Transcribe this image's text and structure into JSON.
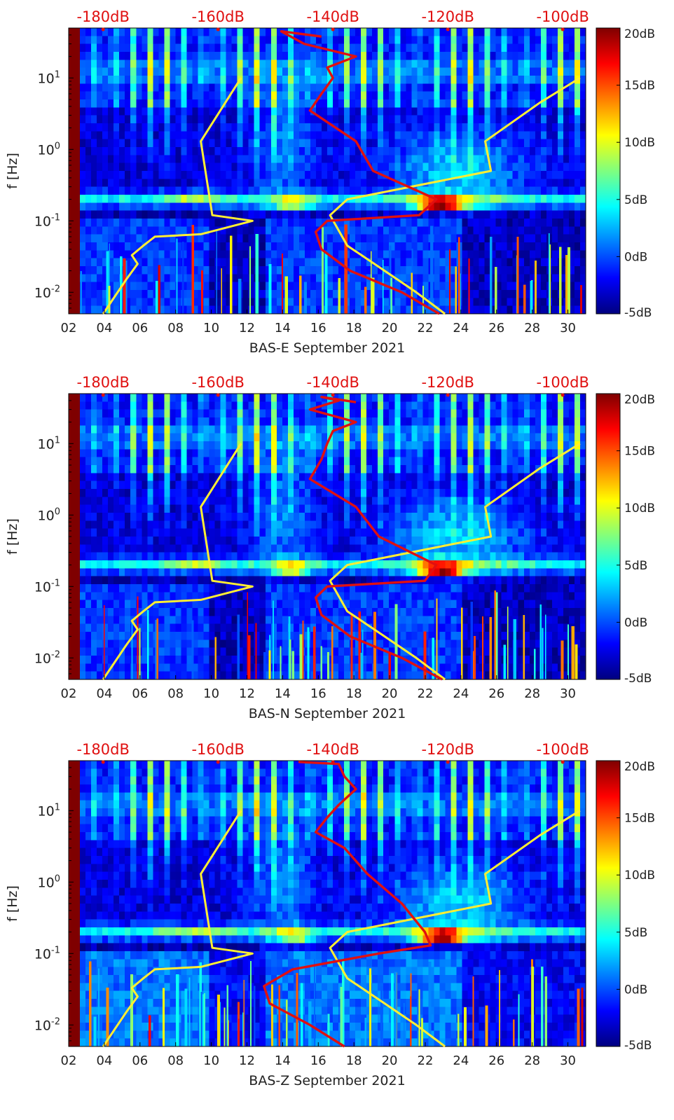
{
  "colors": {
    "noise_model_line": "#ffee33",
    "psd_line": "#e01010",
    "top_axis_text": "#e01010",
    "colormap": [
      "#00007f",
      "#0000ff",
      "#007fff",
      "#00ffff",
      "#7fff7f",
      "#ffff00",
      "#ff7f00",
      "#ff0000",
      "#7f0000"
    ]
  },
  "chart_data": [
    {
      "type": "heatmap",
      "title": "",
      "xlabel": "BAS-E September 2021",
      "ylabel": "f [Hz]",
      "x_ticks": [
        "02",
        "04",
        "06",
        "08",
        "10",
        "12",
        "14",
        "16",
        "18",
        "20",
        "22",
        "24",
        "26",
        "28",
        "30"
      ],
      "y_ticks": [
        "10-2",
        "10-1",
        "100",
        "101"
      ],
      "top_axis_ticks": [
        "-180dB",
        "-160dB",
        "-140dB",
        "-120dB",
        "-100dB"
      ],
      "colorbar_ticks": [
        "20dB",
        "15dB",
        "10dB",
        "5dB",
        "0dB",
        "-5dB"
      ],
      "xlim": [
        2,
        31
      ],
      "ylim": [
        0.005,
        50
      ],
      "y_scale": "log",
      "clim_db": [
        -5,
        20
      ],
      "top_axis_range_db": [
        -186,
        -96
      ],
      "series": [
        {
          "x_db": [
            -180,
            -176,
            -174,
            -175,
            -173,
            -171,
            -163,
            -154,
            -161,
            -163,
            -156
          ],
          "f_hz": [
            0.005,
            0.015,
            0.025,
            0.033,
            0.045,
            0.06,
            0.065,
            0.1,
            0.12,
            1.3,
            10
          ]
        },
        {
          "x_db": [
            -120.5,
            -125.5,
            -131,
            -137.5,
            -140.5,
            -137.5,
            -112.5,
            -113.5,
            -104,
            -97
          ],
          "f_hz": [
            0.005,
            0.01,
            0.02,
            0.045,
            0.12,
            0.2,
            0.5,
            1.3,
            4.5,
            10
          ]
        },
        {
          "x_db": [
            -121.5,
            -128,
            -137,
            -142,
            -143,
            -141,
            -125,
            -122,
            -133,
            -136,
            -144,
            -142,
            -140,
            -141,
            -136,
            -145,
            -149,
            -142
          ],
          "f_hz": [
            0.005,
            0.01,
            0.02,
            0.04,
            0.07,
            0.1,
            0.12,
            0.2,
            0.5,
            1.3,
            3.5,
            6,
            10,
            14,
            20,
            30,
            45,
            38
          ]
        }
      ]
    },
    {
      "type": "heatmap",
      "title": "",
      "xlabel": "BAS-N September 2021",
      "ylabel": "f [Hz]",
      "x_ticks": [
        "02",
        "04",
        "06",
        "08",
        "10",
        "12",
        "14",
        "16",
        "18",
        "20",
        "22",
        "24",
        "26",
        "28",
        "30"
      ],
      "y_ticks": [
        "10-2",
        "10-1",
        "100",
        "101"
      ],
      "top_axis_ticks": [
        "-180dB",
        "-160dB",
        "-140dB",
        "-120dB",
        "-100dB"
      ],
      "colorbar_ticks": [
        "20dB",
        "15dB",
        "10dB",
        "5dB",
        "0dB",
        "-5dB"
      ],
      "xlim": [
        2,
        31
      ],
      "ylim": [
        0.005,
        50
      ],
      "y_scale": "log",
      "clim_db": [
        -5,
        20
      ],
      "top_axis_range_db": [
        -186,
        -96
      ],
      "series": [
        {
          "x_db": [
            -180,
            -176,
            -174,
            -175,
            -173,
            -171,
            -163,
            -154,
            -161,
            -163,
            -156
          ],
          "f_hz": [
            0.005,
            0.015,
            0.025,
            0.033,
            0.045,
            0.06,
            0.065,
            0.1,
            0.12,
            1.3,
            10
          ]
        },
        {
          "x_db": [
            -120.5,
            -125.5,
            -131,
            -137.5,
            -140.5,
            -137.5,
            -112.5,
            -113.5,
            -104,
            -97
          ],
          "f_hz": [
            0.005,
            0.01,
            0.02,
            0.045,
            0.12,
            0.2,
            0.5,
            1.3,
            4.5,
            10
          ]
        },
        {
          "x_db": [
            -121,
            -128,
            -137,
            -142,
            -143,
            -141,
            -124,
            -122,
            -132,
            -136,
            -144,
            -142,
            -141,
            -140,
            -136,
            -144,
            -139,
            -142,
            -136
          ],
          "f_hz": [
            0.005,
            0.01,
            0.02,
            0.04,
            0.07,
            0.1,
            0.12,
            0.2,
            0.5,
            1.3,
            3.2,
            6,
            10,
            15,
            20,
            30,
            40,
            45,
            38
          ]
        }
      ]
    },
    {
      "type": "heatmap",
      "title": "",
      "xlabel": "BAS-Z September 2021",
      "ylabel": "f [Hz]",
      "x_ticks": [
        "02",
        "04",
        "06",
        "08",
        "10",
        "12",
        "14",
        "16",
        "18",
        "20",
        "22",
        "24",
        "26",
        "28",
        "30"
      ],
      "y_ticks": [
        "10-2",
        "10-1",
        "100",
        "101"
      ],
      "top_axis_ticks": [
        "-180dB",
        "-160dB",
        "-140dB",
        "-120dB",
        "-100dB"
      ],
      "colorbar_ticks": [
        "20dB",
        "15dB",
        "10dB",
        "5dB",
        "0dB",
        "-5dB"
      ],
      "xlim": [
        2,
        31
      ],
      "ylim": [
        0.005,
        50
      ],
      "y_scale": "log",
      "clim_db": [
        -5,
        20
      ],
      "top_axis_range_db": [
        -186,
        -96
      ],
      "series": [
        {
          "x_db": [
            -180,
            -176,
            -174,
            -175,
            -173,
            -171,
            -163,
            -154,
            -161,
            -163,
            -156
          ],
          "f_hz": [
            0.005,
            0.015,
            0.025,
            0.033,
            0.045,
            0.06,
            0.065,
            0.1,
            0.12,
            1.3,
            10
          ]
        },
        {
          "x_db": [
            -120.5,
            -125.5,
            -131,
            -137.5,
            -140.5,
            -137.5,
            -112.5,
            -113.5,
            -104,
            -97
          ],
          "f_hz": [
            0.005,
            0.01,
            0.02,
            0.045,
            0.12,
            0.2,
            0.5,
            1.3,
            4.5,
            10
          ]
        },
        {
          "x_db": [
            -138,
            -144,
            -151,
            -152,
            -147,
            -132,
            -123,
            -124,
            -128,
            -134,
            -138,
            -143,
            -141,
            -139,
            -136,
            -138,
            -139,
            -146
          ],
          "f_hz": [
            0.005,
            0.01,
            0.02,
            0.035,
            0.06,
            0.1,
            0.13,
            0.2,
            0.5,
            1.3,
            3,
            5,
            8,
            12,
            20,
            30,
            45,
            48
          ]
        }
      ]
    }
  ]
}
